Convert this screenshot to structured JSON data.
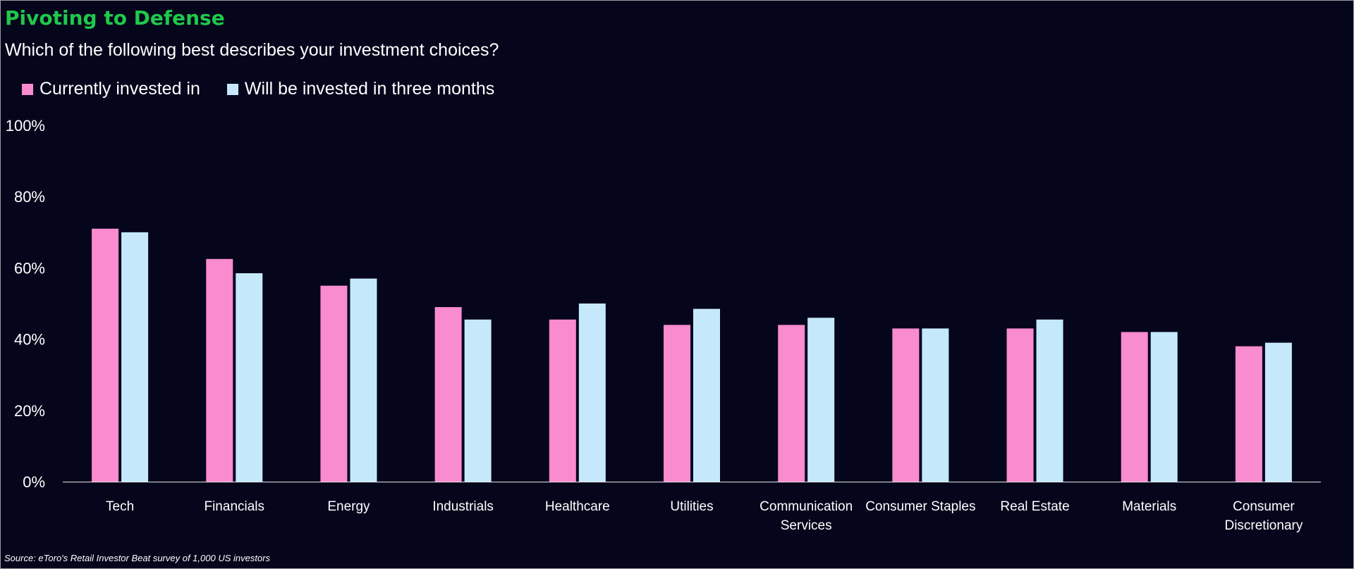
{
  "chart_data": {
    "type": "bar",
    "title": "Pivoting to Defense",
    "subtitle": "Which of the following best describes your investment choices?",
    "categories": [
      [
        "Tech"
      ],
      [
        "Financials"
      ],
      [
        "Energy"
      ],
      [
        "Industrials"
      ],
      [
        "Healthcare"
      ],
      [
        "Utilities"
      ],
      [
        "Communication",
        "Services"
      ],
      [
        "Consumer Staples"
      ],
      [
        "Real Estate"
      ],
      [
        "Materials"
      ],
      [
        "Consumer",
        "Discretionary"
      ]
    ],
    "series": [
      {
        "name": "Currently invested in",
        "color": "#f98bcf",
        "values": [
          71,
          62.5,
          55,
          49,
          45.5,
          44,
          44,
          43,
          43,
          42,
          38
        ]
      },
      {
        "name": "Will be invested in three months",
        "color": "#c5e9fb",
        "values": [
          70,
          58.5,
          57,
          45.5,
          50,
          48.5,
          46,
          43,
          45.5,
          42,
          39
        ]
      }
    ],
    "ylim": [
      0,
      100
    ],
    "yticks": [
      0,
      20,
      40,
      60,
      80,
      100
    ],
    "ytick_suffix": "%",
    "grid": false,
    "legend": "top-left"
  },
  "source": "Source: eToro's Retail Investor Beat survey of 1,000 US investors",
  "colors": {
    "title": "#1ec94a",
    "background": "#05051c",
    "axis": "#e6e6e6"
  }
}
